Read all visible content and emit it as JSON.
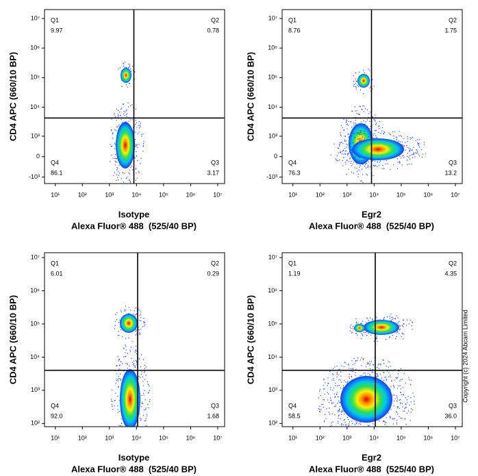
{
  "copyright": "Copyright (c) 2024 Abcam Limited",
  "chart_data": [
    {
      "type": "density",
      "ylabel": "CD4 APC (660/10 BP)",
      "xlabel": [
        "Isotype",
        "Alexa Fluor® 488  (525/40 BP)"
      ],
      "xscale": "log",
      "yscale": "biexponential",
      "xlim": [
        4,
        18000000
      ],
      "ylim": [
        -1700,
        20000000
      ],
      "xticks": [
        {
          "value": 10,
          "label": "10¹"
        },
        {
          "value": 100,
          "label": "10²"
        },
        {
          "value": 1000,
          "label": "10³"
        },
        {
          "value": 10000,
          "label": "10⁴"
        },
        {
          "value": 100000,
          "label": "10⁵"
        },
        {
          "value": 1000000,
          "label": "10⁶"
        },
        {
          "value": 10000000,
          "label": "10⁷"
        }
      ],
      "yticks": [
        {
          "value": -1000,
          "label": "-10³"
        },
        0,
        {
          "value": 1000,
          "label": "10³"
        },
        {
          "value": 10000,
          "label": "10⁴"
        },
        {
          "value": 100000,
          "label": "10⁵"
        },
        {
          "value": 1000000,
          "label": "10⁶"
        },
        {
          "value": 10000000,
          "label": "10⁷"
        }
      ],
      "gates": {
        "x": 8000,
        "y": 4300
      },
      "quadrants": {
        "names": [
          "Q1",
          "Q2",
          "Q3",
          "Q4"
        ],
        "values": [
          9.97,
          0.78,
          3.17,
          86.1
        ],
        "value_labels": [
          "9.97",
          "0.78",
          "3.17",
          "86.1"
        ]
      }
    },
    {
      "type": "density",
      "ylabel": "CD4 APC (660/10 BP)",
      "xlabel": [
        "Egr2",
        "Alexa Fluor® 488  (525/40 BP)"
      ],
      "xscale": "log",
      "yscale": "biexponential",
      "xlim": [
        4,
        18000000
      ],
      "ylim": [
        -1700,
        20000000
      ],
      "xticks": [
        {
          "value": 10,
          "label": "10¹"
        },
        {
          "value": 100,
          "label": "10²"
        },
        {
          "value": 1000,
          "label": "10³"
        },
        {
          "value": 10000,
          "label": "10⁴"
        },
        {
          "value": 100000,
          "label": "10⁵"
        },
        {
          "value": 1000000,
          "label": "10⁶"
        },
        {
          "value": 10000000,
          "label": "10⁷"
        }
      ],
      "yticks": [
        {
          "value": -1000,
          "label": "-10³"
        },
        0,
        {
          "value": 1000,
          "label": "10³"
        },
        {
          "value": 10000,
          "label": "10⁴"
        },
        {
          "value": 100000,
          "label": "10⁵"
        },
        {
          "value": 1000000,
          "label": "10⁶"
        },
        {
          "value": 10000000,
          "label": "10⁷"
        }
      ],
      "gates": {
        "x": 8000,
        "y": 4300
      },
      "quadrants": {
        "names": [
          "Q1",
          "Q2",
          "Q3",
          "Q4"
        ],
        "values": [
          8.76,
          1.75,
          13.2,
          76.3
        ],
        "value_labels": [
          "8.76",
          "1.75",
          "13.2",
          "76.3"
        ]
      }
    },
    {
      "type": "density",
      "ylabel": "CD4 APC (660/10 BP)",
      "xlabel": [
        "Isotype",
        "Alexa Fluor® 488  (525/40 BP)"
      ],
      "xscale": "log",
      "yscale": "log",
      "xlim": [
        4,
        18000000
      ],
      "ylim": [
        80,
        14000000
      ],
      "xticks": [
        {
          "value": 10,
          "label": "10¹"
        },
        {
          "value": 100,
          "label": "10²"
        },
        {
          "value": 1000,
          "label": "10³"
        },
        {
          "value": 10000,
          "label": "10⁴"
        },
        {
          "value": 100000,
          "label": "10⁵"
        },
        {
          "value": 1000000,
          "label": "10⁶"
        },
        {
          "value": 10000000,
          "label": "10⁷"
        }
      ],
      "yticks": [
        {
          "value": 100,
          "label": "10²"
        },
        {
          "value": 1000,
          "label": "10³"
        },
        {
          "value": 10000,
          "label": "10⁴"
        },
        {
          "value": 100000,
          "label": "10⁵"
        },
        {
          "value": 1000000,
          "label": "10⁶"
        },
        {
          "value": 10000000,
          "label": "10⁷"
        }
      ],
      "gates": {
        "x": 11000,
        "y": 4000
      },
      "quadrants": {
        "names": [
          "Q1",
          "Q2",
          "Q3",
          "Q4"
        ],
        "values": [
          6.01,
          0.29,
          1.68,
          92
        ],
        "value_labels": [
          "6.01",
          "0.29",
          "1.68",
          "92.0"
        ]
      }
    },
    {
      "type": "density",
      "ylabel": "CD4 APC (660/10 BP)",
      "xlabel": [
        "Egr2",
        "Alexa Fluor® 488  (525/40 BP)"
      ],
      "xscale": "log",
      "yscale": "log",
      "xlim": [
        4,
        18000000
      ],
      "ylim": [
        80,
        14000000
      ],
      "xticks": [
        {
          "value": 10,
          "label": "10¹"
        },
        {
          "value": 100,
          "label": "10²"
        },
        {
          "value": 1000,
          "label": "10³"
        },
        {
          "value": 10000,
          "label": "10⁴"
        },
        {
          "value": 100000,
          "label": "10⁵"
        },
        {
          "value": 1000000,
          "label": "10⁶"
        },
        {
          "value": 10000000,
          "label": "10⁷"
        }
      ],
      "yticks": [
        {
          "value": 100,
          "label": "10²"
        },
        {
          "value": 1000,
          "label": "10³"
        },
        {
          "value": 10000,
          "label": "10⁴"
        },
        {
          "value": 100000,
          "label": "10⁵"
        },
        {
          "value": 1000000,
          "label": "10⁶"
        },
        {
          "value": 10000000,
          "label": "10⁷"
        }
      ],
      "gates": {
        "x": 11000,
        "y": 4000
      },
      "quadrants": {
        "names": [
          "Q1",
          "Q2",
          "Q3",
          "Q4"
        ],
        "values": [
          1.19,
          4.35,
          36,
          58.5
        ],
        "value_labels": [
          "1.19",
          "4.35",
          "36.0",
          "58.5"
        ]
      }
    }
  ]
}
